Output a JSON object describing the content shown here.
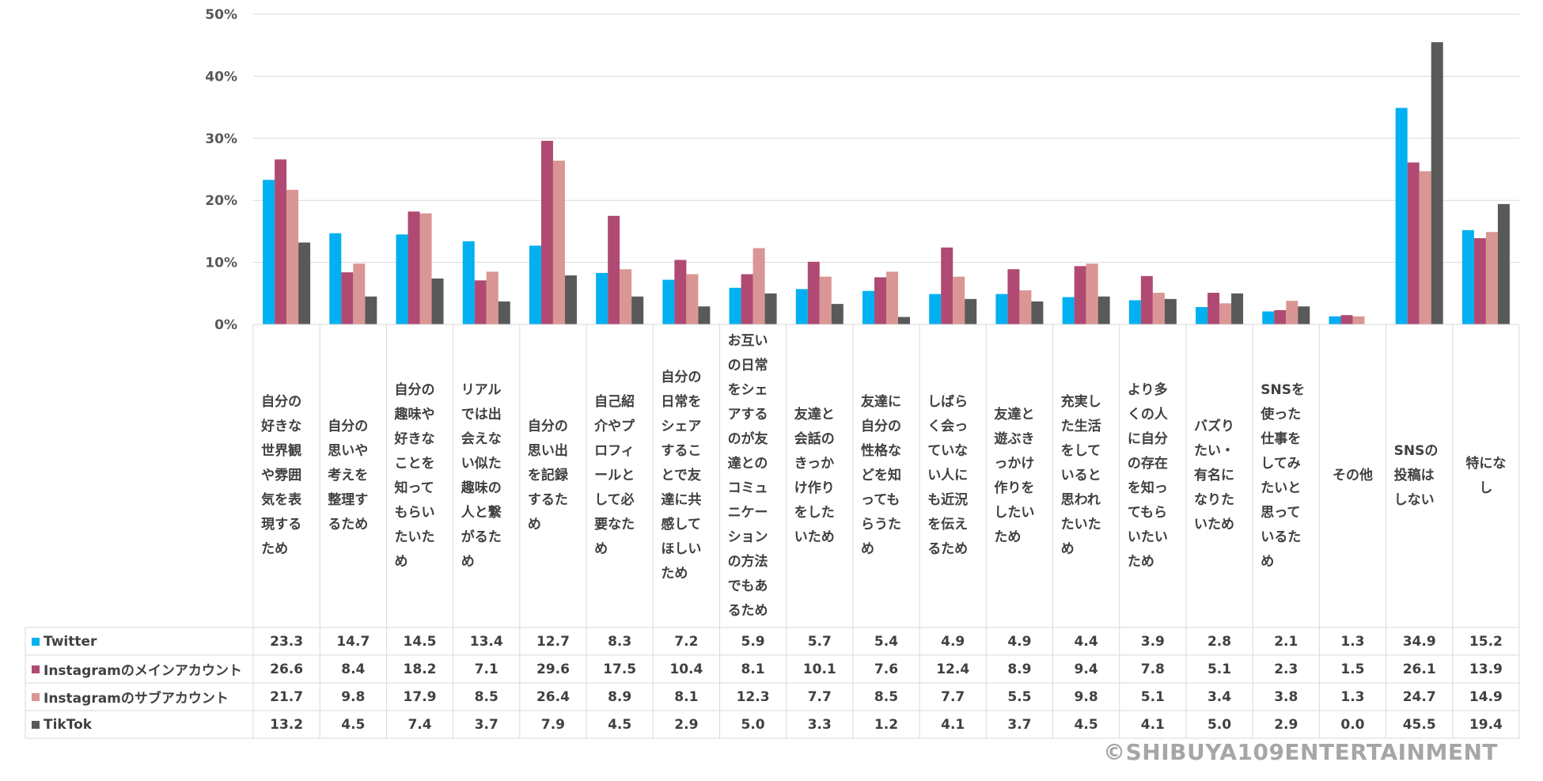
{
  "chart_data": {
    "type": "bar",
    "ylim": [
      0,
      50
    ],
    "yticks": [
      "0%",
      "10%",
      "20%",
      "30%",
      "40%",
      "50%"
    ],
    "grid": true,
    "colors": [
      "#00b0f0",
      "#b04a72",
      "#d99694",
      "#595959"
    ],
    "categories": [
      "自分の好きな世界観や雰囲気を表現するため",
      "自分の思いや考えを整理するため",
      "自分の趣味や好きなことを知ってもらいたいため",
      "リアルでは出会えない似た趣味の人と繋がるため",
      "自分の思い出を記録するため",
      "自己紹介やプロフィールとして必要なため",
      "自分の日常をシェアすることで友達に共感してほしいため",
      "お互いの日常をシェアするのが友達とのコミュニケーションの方法でもあるため",
      "友達と会話のきっかけ作りをしたいため",
      "友達に自分の性格などを知ってもらうため",
      "しばらく会っていない人にも近況を伝えるため",
      "友達と遊ぶきっかけ作りをしたいため",
      "充実した生活をしていると思われたいため",
      "より多くの人に自分の存在を知ってもらいたいため",
      "バズりたい・有名になりたいため",
      "SNSを使った仕事をしてみたいと思っているため",
      "その他",
      "SNSの投稿はしない",
      "特になし"
    ],
    "series": [
      {
        "name": "Twitter",
        "values": [
          23.3,
          14.7,
          14.5,
          13.4,
          12.7,
          8.3,
          7.2,
          5.9,
          5.7,
          5.4,
          4.9,
          4.9,
          4.4,
          3.9,
          2.8,
          2.1,
          1.3,
          34.9,
          15.2
        ],
        "labels": [
          "23.3",
          "14.7",
          "14.5",
          "13.4",
          "12.7",
          "8.3",
          "7.2",
          "5.9",
          "5.7",
          "5.4",
          "4.9",
          "4.9",
          "4.4",
          "3.9",
          "2.8",
          "2.1",
          "1.3",
          "34.9",
          "15.2"
        ]
      },
      {
        "name": "Instagramのメインアカウント",
        "values": [
          26.6,
          8.4,
          18.2,
          7.1,
          29.6,
          17.5,
          10.4,
          8.1,
          10.1,
          7.6,
          12.4,
          8.9,
          9.4,
          7.8,
          5.1,
          2.3,
          1.5,
          26.1,
          13.9
        ],
        "labels": [
          "26.6",
          "8.4",
          "18.2",
          "7.1",
          "29.6",
          "17.5",
          "10.4",
          "8.1",
          "10.1",
          "7.6",
          "12.4",
          "8.9",
          "9.4",
          "7.8",
          "5.1",
          "2.3",
          "1.5",
          "26.1",
          "13.9"
        ]
      },
      {
        "name": "Instagramのサブアカウント",
        "values": [
          21.7,
          9.8,
          17.9,
          8.5,
          26.4,
          8.9,
          8.1,
          12.3,
          7.7,
          8.5,
          7.7,
          5.5,
          9.8,
          5.1,
          3.4,
          3.8,
          1.3,
          24.7,
          14.9
        ],
        "labels": [
          "21.7",
          "9.8",
          "17.9",
          "8.5",
          "26.4",
          "8.9",
          "8.1",
          "12.3",
          "7.7",
          "8.5",
          "7.7",
          "5.5",
          "9.8",
          "5.1",
          "3.4",
          "3.8",
          "1.3",
          "24.7",
          "14.9"
        ]
      },
      {
        "name": "TikTok",
        "values": [
          13.2,
          4.5,
          7.4,
          3.7,
          7.9,
          4.5,
          2.9,
          5.0,
          3.3,
          1.2,
          4.1,
          3.7,
          4.5,
          4.1,
          5.0,
          2.9,
          0.0,
          45.5,
          19.4
        ],
        "labels": [
          "13.2",
          "4.5",
          "7.4",
          "3.7",
          "7.9",
          "4.5",
          "2.9",
          "5.0",
          "3.3",
          "1.2",
          "4.1",
          "3.7",
          "4.5",
          "4.1",
          "5.0",
          "2.9",
          "0.0",
          "45.5",
          "19.4"
        ]
      }
    ]
  },
  "footer": {
    "copyright": "©SHIBUYA109ENTERTAINMENT"
  }
}
